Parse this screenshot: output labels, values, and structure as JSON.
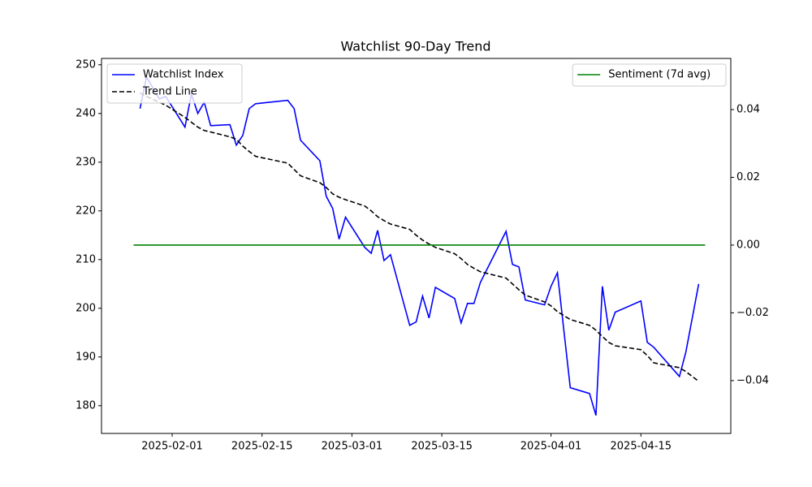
{
  "chart_data": {
    "type": "line",
    "title": "Watchlist 90-Day Trend",
    "x": [
      "2025-01-27",
      "2025-01-28",
      "2025-01-30",
      "2025-01-31",
      "2025-02-03",
      "2025-02-04",
      "2025-02-05",
      "2025-02-06",
      "2025-02-07",
      "2025-02-10",
      "2025-02-11",
      "2025-02-12",
      "2025-02-13",
      "2025-02-14",
      "2025-02-19",
      "2025-02-20",
      "2025-02-21",
      "2025-02-24",
      "2025-02-25",
      "2025-02-26",
      "2025-02-27",
      "2025-02-28",
      "2025-03-03",
      "2025-03-04",
      "2025-03-05",
      "2025-03-06",
      "2025-03-07",
      "2025-03-10",
      "2025-03-11",
      "2025-03-12",
      "2025-03-13",
      "2025-03-14",
      "2025-03-17",
      "2025-03-18",
      "2025-03-19",
      "2025-03-20",
      "2025-03-21",
      "2025-03-25",
      "2025-03-26",
      "2025-03-27",
      "2025-03-28",
      "2025-03-31",
      "2025-04-01",
      "2025-04-02",
      "2025-04-04",
      "2025-04-07",
      "2025-04-08",
      "2025-04-09",
      "2025-04-10",
      "2025-04-11",
      "2025-04-15",
      "2025-04-16",
      "2025-04-17",
      "2025-04-21",
      "2025-04-22",
      "2025-04-24"
    ],
    "series": [
      {
        "name": "Watchlist Index",
        "color": "#0000ff",
        "style": "solid",
        "values": [
          241.0,
          247.5,
          243.0,
          243.5,
          237.2,
          244.0,
          240.0,
          242.3,
          237.5,
          237.7,
          233.5,
          235.5,
          241.0,
          242.0,
          242.7,
          241.0,
          234.5,
          230.3,
          223.0,
          220.5,
          214.2,
          218.7,
          212.5,
          211.3,
          216.0,
          209.8,
          211.0,
          196.5,
          197.2,
          202.5,
          198.0,
          204.3,
          202.0,
          197.0,
          201.0,
          201.0,
          205.3,
          215.8,
          209.0,
          208.5,
          201.7,
          200.7,
          204.5,
          207.3,
          183.7,
          182.5,
          178.0,
          204.5,
          195.5,
          199.2,
          201.5,
          193.0,
          192.0,
          186.0,
          191.0,
          205.0
        ]
      },
      {
        "name": "Trend Line",
        "color": "#000000",
        "style": "dashed",
        "values": [
          244.2,
          243.5,
          242.3,
          241.7,
          239.2,
          238.2,
          237.2,
          236.5,
          236.2,
          235.2,
          234.7,
          233.3,
          232.2,
          231.2,
          229.8,
          228.5,
          227.2,
          225.8,
          224.8,
          223.5,
          222.8,
          222.3,
          221.0,
          220.0,
          218.8,
          218.0,
          217.3,
          216.2,
          215.0,
          214.0,
          213.2,
          212.5,
          211.2,
          210.2,
          209.0,
          208.2,
          207.5,
          206.2,
          205.0,
          203.8,
          202.7,
          201.3,
          200.5,
          199.3,
          197.7,
          196.5,
          195.5,
          194.2,
          193.0,
          192.3,
          191.5,
          190.3,
          188.8,
          187.8,
          187.0,
          185.0
        ]
      },
      {
        "name": "Sentiment (7d avg)",
        "color": "#008000",
        "style": "solid",
        "axis": "y2",
        "x": [
          "2025-01-26",
          "2025-04-25"
        ],
        "values": [
          0.0,
          0.0
        ]
      }
    ],
    "xlim": [
      "2025-01-21",
      "2025-04-29"
    ],
    "xticks": [
      "2025-02-01",
      "2025-02-15",
      "2025-03-01",
      "2025-03-15",
      "2025-04-01",
      "2025-04-15"
    ],
    "ylim": [
      174.3,
      251.3
    ],
    "yticks": [
      180,
      190,
      200,
      210,
      220,
      230,
      240,
      250
    ],
    "y2lim": [
      -0.0556,
      0.0551
    ],
    "y2ticks": [
      {
        "value": -0.04,
        "label": "−0.04"
      },
      {
        "value": -0.02,
        "label": "−0.02"
      },
      {
        "value": 0,
        "label": "0.00"
      },
      {
        "value": 0.02,
        "label": "0.02"
      },
      {
        "value": 0.04,
        "label": "0.04"
      }
    ],
    "legend": "upper left",
    "legend_y2": "upper right",
    "grid": false
  }
}
